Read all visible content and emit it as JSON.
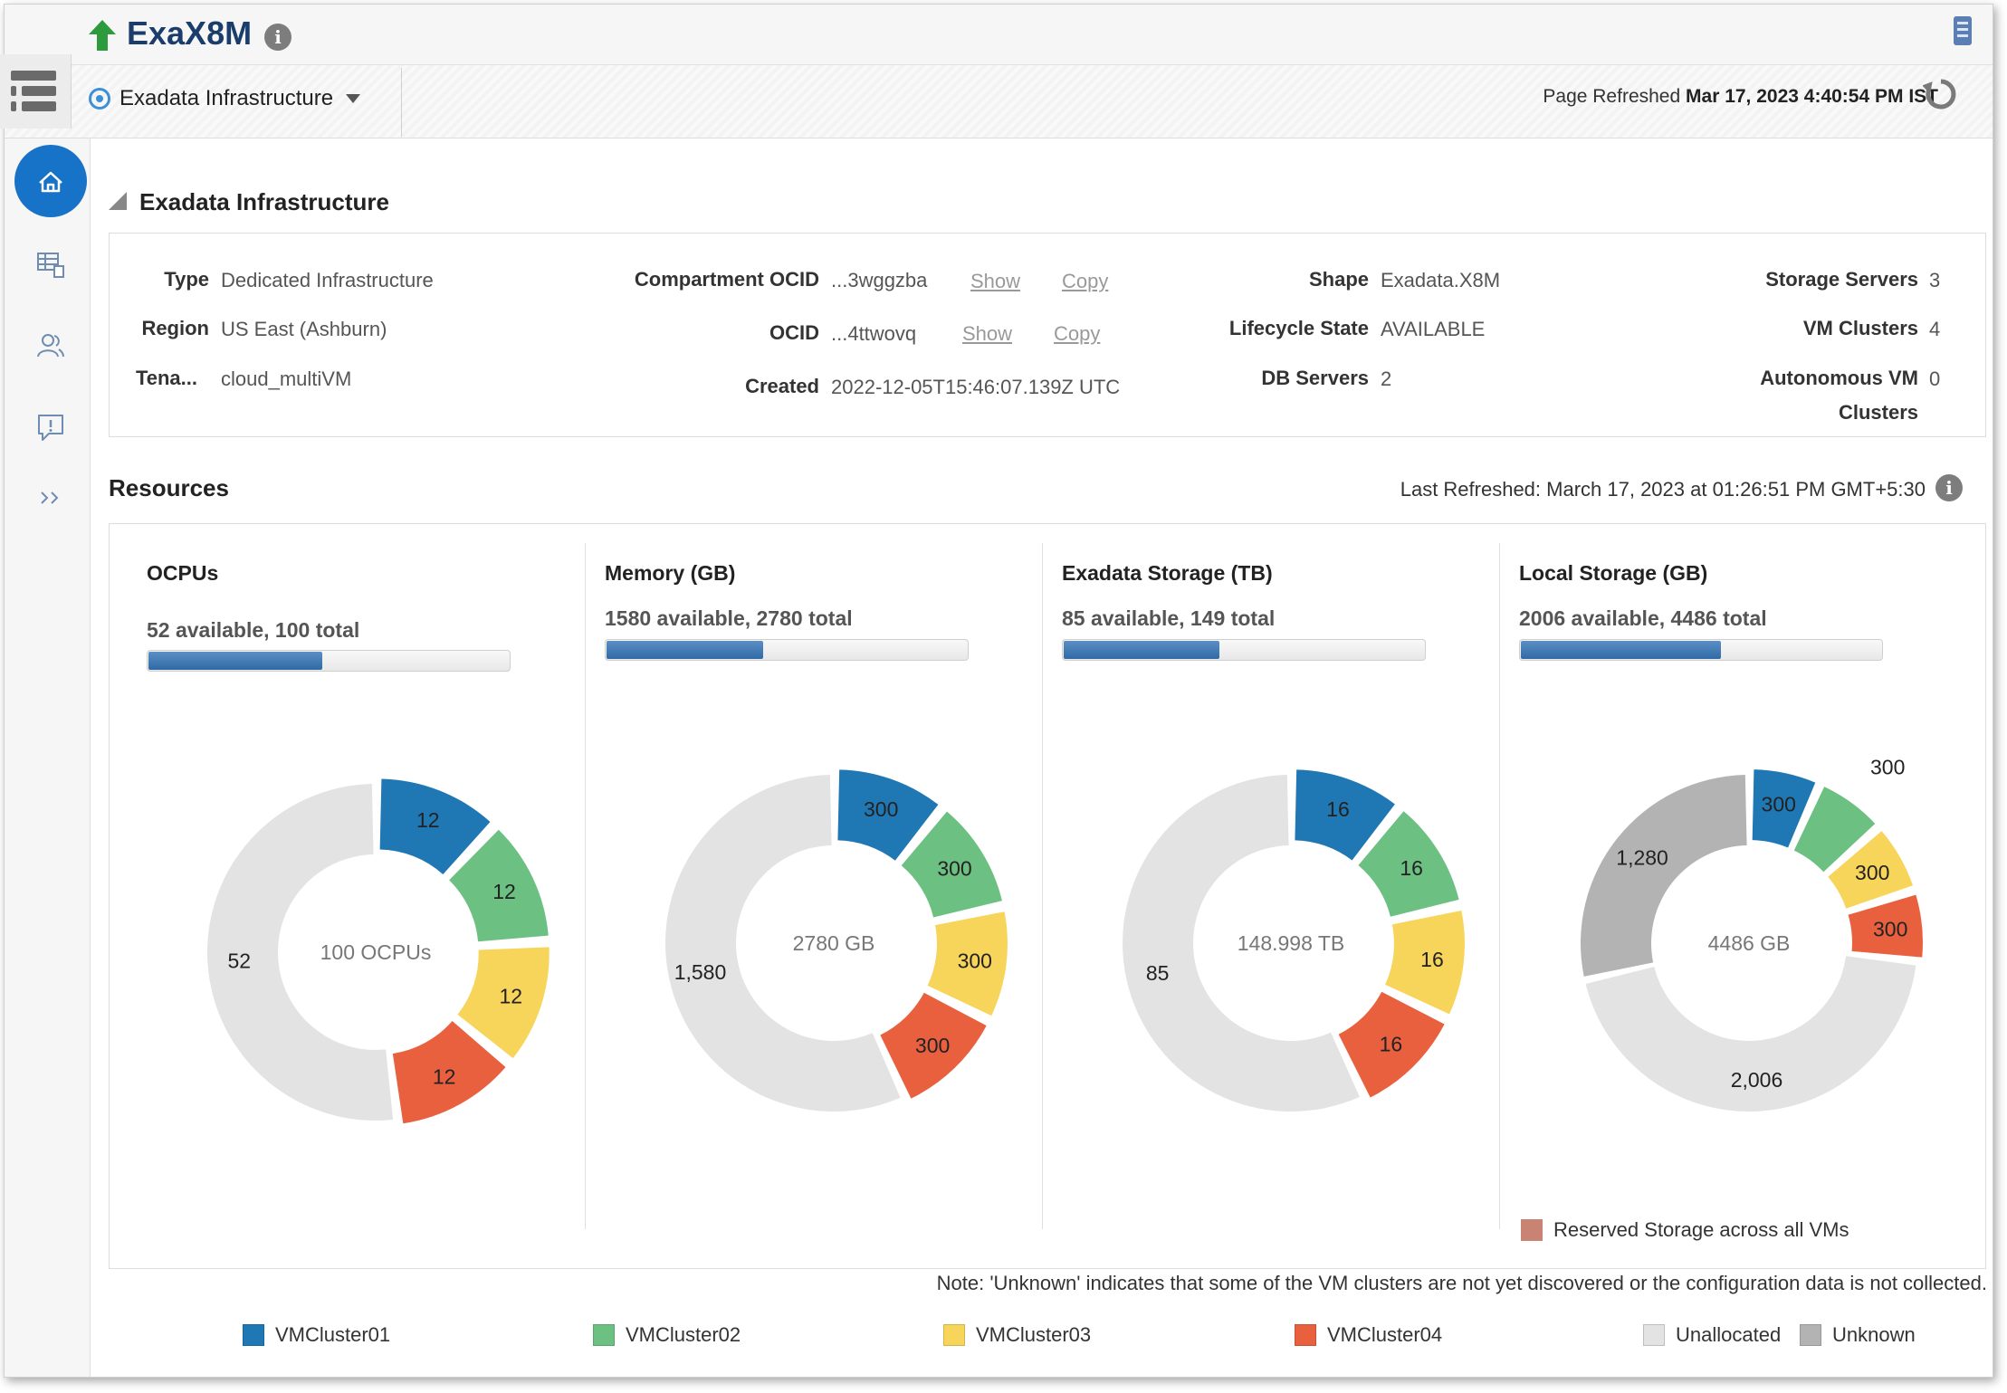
{
  "header": {
    "title": "ExaX8M",
    "nav_select": "Exadata Infrastructure",
    "refresh_label": "Page Refreshed",
    "refresh_time": "Mar 17, 2023 4:40:54 PM IST"
  },
  "section": {
    "title": "Exadata Infrastructure",
    "fields": {
      "type_label": "Type",
      "type_value": "Dedicated Infrastructure",
      "region_label": "Region",
      "region_value": "US East (Ashburn)",
      "tenancy_label": "Tena...",
      "tenancy_value": "cloud_multiVM",
      "compartment_label": "Compartment OCID",
      "compartment_value": "...3wggzba",
      "ocid_label": "OCID",
      "ocid_value": "...4ttwovq",
      "created_label": "Created",
      "created_value": "2022-12-05T15:46:07.139Z UTC",
      "show_label": "Show",
      "copy_label": "Copy",
      "shape_label": "Shape",
      "shape_value": "Exadata.X8M",
      "lifecycle_label": "Lifecycle State",
      "lifecycle_value": "AVAILABLE",
      "dbservers_label": "DB Servers",
      "dbservers_value": "2",
      "storage_servers_label": "Storage Servers",
      "storage_servers_value": "3",
      "vm_clusters_label": "VM Clusters",
      "vm_clusters_value": "4",
      "autonomous_label_1": "Autonomous VM",
      "autonomous_label_2": "Clusters",
      "autonomous_value": "0"
    }
  },
  "resources": {
    "title": "Resources",
    "last_refreshed": "Last Refreshed: March 17, 2023 at 01:26:51 PM GMT+5:30",
    "reserved_label": "Reserved Storage across all VMs",
    "note": "Note: 'Unknown' indicates that some of the VM clusters are not yet discovered or the configuration data is not collected."
  },
  "colors": {
    "VMCluster01": "#1f77b4",
    "VMCluster02": "#6cc082",
    "VMCluster03": "#f7d45a",
    "VMCluster04": "#e9603f",
    "Unallocated": "#e3e3e3",
    "Unknown": "#b3b3b3",
    "Reserved": "#c98373",
    "accent": "#1673c8"
  },
  "chart_data": [
    {
      "type": "pie",
      "title": "OCPUs",
      "subtitle": "52 available, 100 total",
      "available": 52,
      "total": 100,
      "center_label": "100 OCPUs",
      "slices": [
        {
          "name": "VMCluster01",
          "value": 12,
          "label": "12"
        },
        {
          "name": "VMCluster02",
          "value": 12,
          "label": "12"
        },
        {
          "name": "VMCluster03",
          "value": 12,
          "label": "12"
        },
        {
          "name": "VMCluster04",
          "value": 12,
          "label": "12"
        },
        {
          "name": "Unallocated",
          "value": 52,
          "label": "52"
        }
      ]
    },
    {
      "type": "pie",
      "title": "Memory (GB)",
      "subtitle": "1580 available, 2780 total",
      "available": 1580,
      "total": 2780,
      "center_label": "2780 GB",
      "slices": [
        {
          "name": "VMCluster01",
          "value": 300,
          "label": "300"
        },
        {
          "name": "VMCluster02",
          "value": 300,
          "label": "300"
        },
        {
          "name": "VMCluster03",
          "value": 300,
          "label": "300"
        },
        {
          "name": "VMCluster04",
          "value": 300,
          "label": "300"
        },
        {
          "name": "Unallocated",
          "value": 1580,
          "label": "1,580"
        }
      ]
    },
    {
      "type": "pie",
      "title": "Exadata Storage (TB)",
      "subtitle": "85 available, 149 total",
      "available": 85,
      "total": 149,
      "center_label": "148.998 TB",
      "slices": [
        {
          "name": "VMCluster01",
          "value": 16,
          "label": "16"
        },
        {
          "name": "VMCluster02",
          "value": 16,
          "label": "16"
        },
        {
          "name": "VMCluster03",
          "value": 16,
          "label": "16"
        },
        {
          "name": "VMCluster04",
          "value": 16,
          "label": "16"
        },
        {
          "name": "Unallocated",
          "value": 85,
          "label": "85"
        }
      ]
    },
    {
      "type": "pie",
      "title": "Local Storage (GB)",
      "subtitle": "2006 available, 4486 total",
      "available": 2006,
      "total": 4486,
      "center_label": "4486 GB",
      "slices": [
        {
          "name": "VMCluster01",
          "value": 300,
          "label": "300"
        },
        {
          "name": "VMCluster02",
          "value": 300,
          "label": "300"
        },
        {
          "name": "VMCluster03",
          "value": 300,
          "label": "300"
        },
        {
          "name": "VMCluster04",
          "value": 300,
          "label": "300"
        },
        {
          "name": "Unallocated",
          "value": 2006,
          "label": "2,006"
        },
        {
          "name": "Unknown",
          "value": 1280,
          "label": "1,280"
        }
      ]
    }
  ],
  "legend": [
    "VMCluster01",
    "VMCluster02",
    "VMCluster03",
    "VMCluster04",
    "Unallocated",
    "Unknown"
  ]
}
